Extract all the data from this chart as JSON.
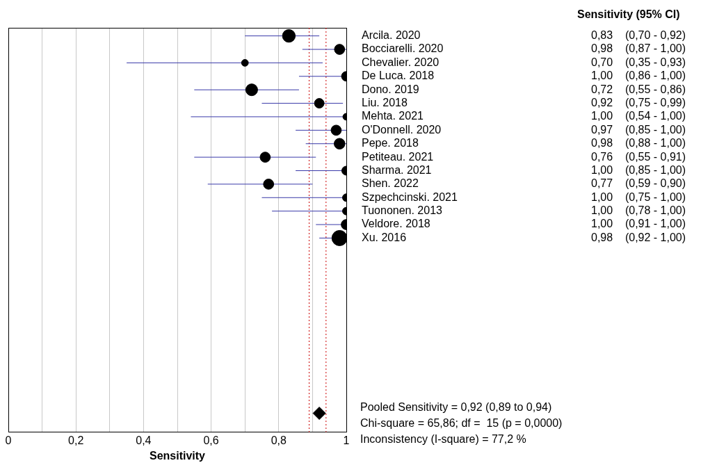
{
  "chart_data": {
    "type": "bubble",
    "orientation": "horizontal",
    "xlabel": "Sensitivity",
    "categories": [
      "Arcila. 2020",
      "Bocciarelli. 2020",
      "Chevalier. 2020",
      "De Luca. 2018",
      "Dono. 2019",
      "Liu. 2018",
      "Mehta. 2021",
      "O'Donnell. 2020",
      "Pepe. 2018",
      "Petiteau. 2021",
      "Sharma. 2021",
      "Shen. 2022",
      "Szpechcinski. 2021",
      "Tuononen. 2013",
      "Veldore. 2018",
      "Xu. 2016",
      null,
      null,
      null,
      null,
      null,
      null,
      null,
      null,
      null,
      null,
      null,
      null,
      null,
      null
    ],
    "series": [
      {
        "color": "#000000",
        "values": [
          0.83,
          0.98,
          0.7,
          1.0,
          0.72,
          0.92,
          1.0,
          0.97,
          0.98,
          0.76,
          1.0,
          0.77,
          1.0,
          1.0,
          1.0,
          0.98,
          null,
          null,
          null,
          null,
          null,
          null,
          null,
          null,
          null,
          null,
          null,
          null,
          null,
          null
        ],
        "sizes": [
          0.7,
          0.45,
          0.2,
          0.4,
          0.6,
          0.4,
          0.2,
          0.45,
          0.5,
          0.45,
          0.35,
          0.45,
          0.25,
          0.25,
          0.45,
          1,
          null,
          null,
          null,
          null,
          null,
          null,
          null,
          null,
          null,
          null,
          null,
          null,
          null,
          null
        ],
        "errors": [
          [
            0.7,
            0.92
          ],
          [
            0.87,
            1.0
          ],
          [
            0.35,
            0.93
          ],
          [
            0.86,
            1.0
          ],
          [
            0.55,
            0.86
          ],
          [
            0.75,
            0.99
          ],
          [
            0.54,
            1.0
          ],
          [
            0.85,
            1.0
          ],
          [
            0.88,
            1.0
          ],
          [
            0.55,
            0.91
          ],
          [
            0.85,
            1.0
          ],
          [
            0.59,
            0.9
          ],
          [
            0.75,
            1.0
          ],
          [
            0.78,
            1.0
          ],
          [
            0.91,
            1.0
          ],
          [
            0.92,
            1.0
          ],
          null,
          null,
          null,
          null,
          null,
          null,
          null,
          null,
          null,
          null,
          null,
          null,
          null,
          null
        ],
        "value_labels": [
          "0,83    (0,70 - 0,92)",
          "0,98    (0,87 - 1,00)",
          "0,70    (0,35 - 0,93)",
          "1,00    (0,86 - 1,00)",
          "0,72    (0,55 - 0,86)",
          "0,92    (0,75 - 0,99)",
          "1,00    (0,54 - 1,00)",
          "0,97    (0,85 - 1,00)",
          "0,98    (0,88 - 1,00)",
          "0,76    (0,55 - 0,91)",
          "1,00    (0,85 - 1,00)",
          "0,77    (0,59 - 0,90)",
          "1,00    (0,75 - 1,00)",
          "1,00    (0,78 - 1,00)",
          "1,00    (0,91 - 1,00)",
          "0,98    (0,92 - 1,00)",
          null,
          null,
          null,
          null,
          null,
          null,
          null,
          null,
          null,
          null,
          null,
          null,
          null,
          null
        ]
      },
      {
        "type": "scatter",
        "marker": "diamond",
        "color": "#000000",
        "values": [
          null,
          null,
          null,
          null,
          null,
          null,
          null,
          null,
          null,
          null,
          null,
          null,
          null,
          null,
          null,
          null,
          null,
          null,
          null,
          null,
          null,
          null,
          null,
          null,
          null,
          null,
          null,
          null,
          0.92,
          null
        ]
      }
    ],
    "xlim": [
      0,
      1
    ],
    "xticks": [
      0,
      {
        "value": 0.1,
        "label": null
      },
      {
        "value": 0.2,
        "label": "0,2"
      },
      {
        "value": 0.3,
        "label": null
      },
      {
        "value": 0.4,
        "label": "0,4"
      },
      {
        "value": 0.5,
        "label": null
      },
      {
        "value": 0.6,
        "label": "0,6"
      },
      {
        "value": 0.7,
        "label": null
      },
      {
        "value": 0.8,
        "label": "0,8"
      },
      {
        "value": 0.9,
        "label": null
      },
      1
    ],
    "grid": "x",
    "legend": false,
    "ref_lines": [
      {
        "axis": "x",
        "value": 0.89,
        "color": "#cc0000",
        "line_style": "dotted"
      },
      {
        "axis": "x",
        "value": 0.94,
        "color": "#cc0000",
        "line_style": "dotted"
      }
    ],
    "annotations": [
      "Sensitivity (95% CI)",
      "Pooled Sensitivity = 0,92 (0,89 to 0,94)",
      "Chi-square = 65,86; df =  15 (p = 0,0000)",
      "Inconsistency (I-square) = 77,2 %"
    ]
  }
}
